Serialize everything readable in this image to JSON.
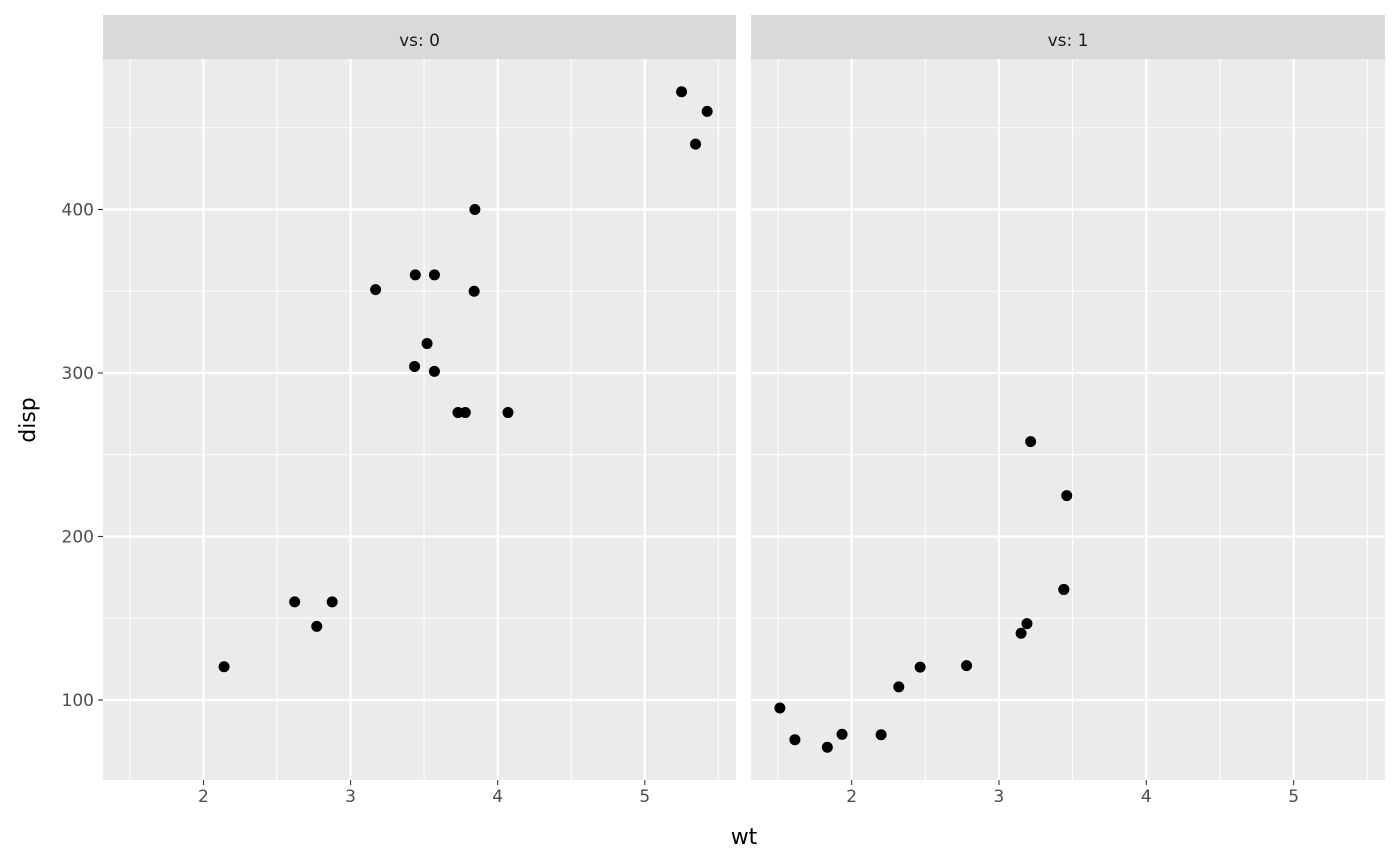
{
  "chart_data": {
    "type": "scatter",
    "xlabel": "wt",
    "ylabel": "disp",
    "xlim": [
      1.317,
      5.62
    ],
    "ylim": [
      51.05,
      492.05
    ],
    "x_ticks": [
      2,
      3,
      4,
      5
    ],
    "y_ticks": [
      100,
      200,
      300,
      400
    ],
    "grid": true,
    "point_color": "#000000",
    "panel_background": "#EBEBEB",
    "strip_background": "#D9D9D9",
    "facets": [
      {
        "label": "vs: 0",
        "x": [
          2.62,
          2.875,
          3.44,
          3.57,
          4.07,
          3.73,
          3.78,
          5.25,
          5.424,
          5.345,
          3.52,
          3.435,
          3.84,
          3.845,
          2.14,
          3.17,
          2.77,
          3.57
        ],
        "y": [
          160,
          160,
          360,
          360,
          275.8,
          275.8,
          275.8,
          472,
          460,
          440,
          318,
          304,
          350,
          400,
          120.3,
          351,
          145,
          301
        ]
      },
      {
        "label": "vs: 1",
        "x": [
          2.32,
          3.215,
          3.46,
          3.19,
          3.15,
          3.44,
          3.44,
          2.2,
          1.615,
          1.835,
          2.465,
          1.935,
          1.513,
          2.78
        ],
        "y": [
          108,
          258,
          225,
          146.7,
          140.8,
          167.6,
          167.6,
          78.7,
          75.7,
          71.1,
          120.1,
          79,
          95.1,
          121
        ]
      }
    ]
  }
}
